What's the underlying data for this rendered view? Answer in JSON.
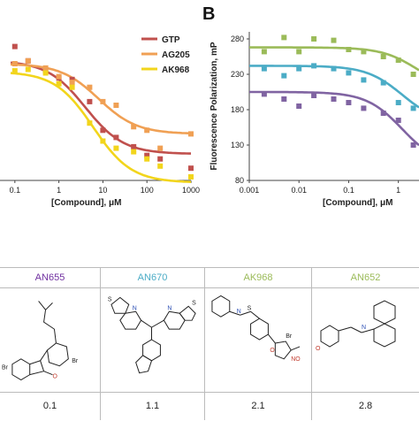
{
  "panel_b_letter": "B",
  "chart_data": [
    {
      "type": "scatter",
      "title": "",
      "xlabel": "[Compound], μM",
      "ylabel": "",
      "xscale": "log",
      "xlim": [
        0.08,
        1000
      ],
      "ylim": [
        95,
        300
      ],
      "x_ticks": [
        0.1,
        1,
        10,
        100,
        1000
      ],
      "x_tick_labels": [
        "0.1",
        "1",
        "10",
        "100",
        "1000"
      ],
      "legend_position": "top-right",
      "grid": false,
      "series": [
        {
          "name": "GTP",
          "color": "#c0504d",
          "points": [
            [
              0.1,
              282
            ],
            [
              0.2,
              262
            ],
            [
              0.5,
              248
            ],
            [
              1,
              238
            ],
            [
              2,
              236
            ],
            [
              5,
              205
            ],
            [
              10,
              165
            ],
            [
              20,
              155
            ],
            [
              50,
              142
            ],
            [
              100,
              130
            ],
            [
              200,
              125
            ],
            [
              1000,
              112
            ]
          ],
          "fit": {
            "top": 262,
            "bottom": 132,
            "ec50": 4,
            "hill": 1.0
          }
        },
        {
          "name": "AG205",
          "color": "#f0a054",
          "points": [
            [
              0.1,
              258
            ],
            [
              0.2,
              262
            ],
            [
              0.5,
              252
            ],
            [
              1,
              240
            ],
            [
              2,
              232
            ],
            [
              5,
              225
            ],
            [
              10,
              205
            ],
            [
              20,
              200
            ],
            [
              50,
              170
            ],
            [
              100,
              165
            ],
            [
              200,
              140
            ],
            [
              1000,
              160
            ]
          ],
          "fit": {
            "top": 258,
            "bottom": 160,
            "ec50": 8,
            "hill": 1.0
          }
        },
        {
          "name": "AK968",
          "color": "#f2d51c",
          "points": [
            [
              0.1,
              248
            ],
            [
              0.2,
              250
            ],
            [
              0.5,
              245
            ],
            [
              1,
              230
            ],
            [
              2,
              225
            ],
            [
              5,
              175
            ],
            [
              10,
              150
            ],
            [
              20,
              140
            ],
            [
              50,
              135
            ],
            [
              100,
              125
            ],
            [
              200,
              115
            ],
            [
              1000,
              100
            ]
          ],
          "fit": {
            "top": 247,
            "bottom": 92,
            "ec50": 6,
            "hill": 1.0
          }
        }
      ]
    },
    {
      "type": "scatter",
      "title": "",
      "xlabel": "[Compound], μM",
      "ylabel": "Fluorescence Polarization, mP",
      "xscale": "log",
      "xlim": [
        0.001,
        2.6
      ],
      "ylim": [
        80,
        290
      ],
      "x_ticks": [
        0.001,
        0.01,
        0.1,
        1
      ],
      "x_tick_labels": [
        "0.001",
        "0.01",
        "0.1",
        "1"
      ],
      "y_ticks": [
        80,
        130,
        180,
        230,
        280
      ],
      "y_tick_labels": [
        "80",
        "130",
        "180",
        "230",
        "280"
      ],
      "grid": false,
      "series": [
        {
          "color": "#9bbb59",
          "points": [
            [
              0.002,
              262
            ],
            [
              0.005,
              282
            ],
            [
              0.01,
              262
            ],
            [
              0.02,
              280
            ],
            [
              0.05,
              278
            ],
            [
              0.1,
              265
            ],
            [
              0.2,
              262
            ],
            [
              0.5,
              255
            ],
            [
              1,
              250
            ],
            [
              2,
              230
            ]
          ],
          "fit": {
            "top": 268,
            "bottom": 205,
            "ec50": 2.5,
            "hill": 1.2
          }
        },
        {
          "color": "#4bacc6",
          "points": [
            [
              0.002,
              238
            ],
            [
              0.005,
              228
            ],
            [
              0.01,
              238
            ],
            [
              0.02,
              242
            ],
            [
              0.05,
              238
            ],
            [
              0.1,
              232
            ],
            [
              0.2,
              222
            ],
            [
              0.5,
              218
            ],
            [
              1,
              190
            ],
            [
              2,
              182
            ]
          ],
          "fit": {
            "top": 242,
            "bottom": 160,
            "ec50": 1.2,
            "hill": 1.2
          }
        },
        {
          "color": "#8064a2",
          "points": [
            [
              0.002,
              202
            ],
            [
              0.005,
              195
            ],
            [
              0.01,
              185
            ],
            [
              0.02,
              200
            ],
            [
              0.05,
              195
            ],
            [
              0.1,
              190
            ],
            [
              0.2,
              182
            ],
            [
              0.5,
              175
            ],
            [
              1,
              165
            ],
            [
              2,
              130
            ]
          ],
          "fit": {
            "top": 205,
            "bottom": 100,
            "ec50": 1.2,
            "hill": 1.2
          }
        }
      ]
    }
  ],
  "table": {
    "columns": [
      {
        "id": "AN655",
        "name": "AN655",
        "color": "#7030a0",
        "value": "0.1",
        "atoms": {
          "br": "Br",
          "o": "O",
          "br2": "Br"
        }
      },
      {
        "id": "AN670",
        "name": "AN670",
        "color": "#4bacc6",
        "value": "1.1",
        "atoms": {
          "s1": "S",
          "s2": "S",
          "n1": "N",
          "n2": "N"
        }
      },
      {
        "id": "AK968",
        "name": "AK968",
        "color": "#9bbb59",
        "value": "2.1",
        "atoms": {
          "s": "S",
          "n": "N",
          "br": "Br",
          "no2": "NO",
          "o": "O"
        }
      },
      {
        "id": "AN652",
        "name": "AN652",
        "color": "#9bbb59",
        "value": "2.8",
        "atoms": {
          "o": "O",
          "n": "N"
        }
      }
    ]
  }
}
